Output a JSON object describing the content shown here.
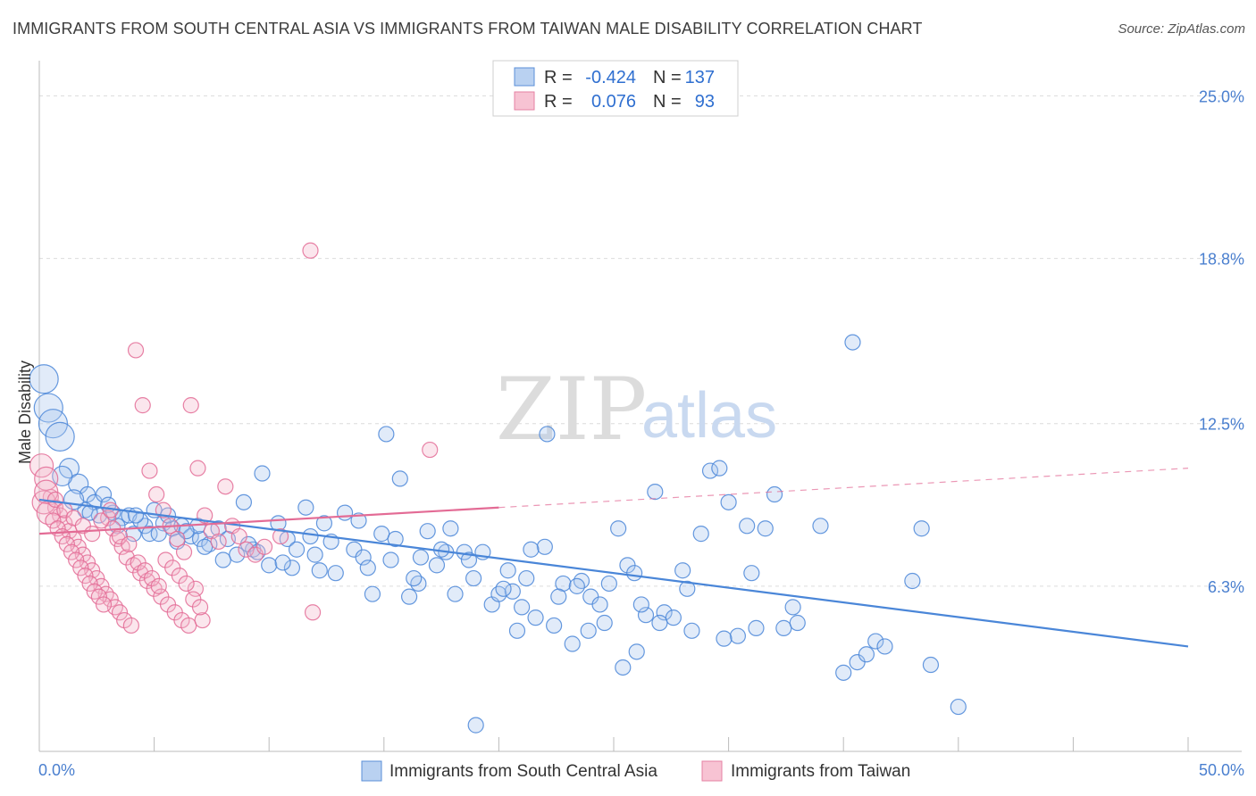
{
  "chart_data": {
    "type": "scatter",
    "title": "IMMIGRANTS FROM SOUTH CENTRAL ASIA VS IMMIGRANTS FROM TAIWAN MALE DISABILITY CORRELATION CHART",
    "source": "Source: ZipAtlas.com",
    "xlabel": "",
    "ylabel": "Male Disability",
    "xlim": [
      0,
      50
    ],
    "ylim": [
      0,
      26
    ],
    "x_tick_labels": [
      "0.0%",
      "50.0%"
    ],
    "y_ticks": [
      6.3,
      12.5,
      18.8,
      25.0
    ],
    "y_tick_labels": [
      "6.3%",
      "12.5%",
      "18.8%",
      "25.0%"
    ],
    "watermark": {
      "zip": "ZIP",
      "atlas": "atlas"
    },
    "legend": {
      "r_label": "R =",
      "n_label": "N =",
      "rows": [
        {
          "r": "-0.424",
          "n": "137"
        },
        {
          "r": "0.076",
          "n": "93"
        }
      ]
    },
    "series": [
      {
        "name": "Immigrants from South Central Asia",
        "color": "#4a86d8",
        "fill": "#a9c6ee",
        "trend": {
          "x0": 0,
          "y0": 9.6,
          "x1": 50,
          "y1": 4.0,
          "style": "solid"
        },
        "points": [
          [
            0.2,
            14.2
          ],
          [
            0.4,
            13.1
          ],
          [
            0.6,
            12.5
          ],
          [
            0.9,
            12.0
          ],
          [
            1.3,
            10.8
          ],
          [
            1.7,
            10.2
          ],
          [
            2.1,
            9.8
          ],
          [
            2.4,
            9.5
          ],
          [
            2.8,
            9.8
          ],
          [
            3.2,
            9.1
          ],
          [
            3.6,
            8.9
          ],
          [
            4.1,
            8.3
          ],
          [
            4.6,
            8.6
          ],
          [
            5.0,
            9.2
          ],
          [
            5.4,
            8.7
          ],
          [
            5.8,
            8.5
          ],
          [
            6.2,
            8.6
          ],
          [
            6.6,
            8.2
          ],
          [
            7.0,
            8.1
          ],
          [
            7.4,
            7.9
          ],
          [
            7.8,
            8.5
          ],
          [
            8.2,
            8.1
          ],
          [
            8.6,
            7.5
          ],
          [
            8.9,
            9.5
          ],
          [
            9.3,
            7.7
          ],
          [
            9.7,
            10.6
          ],
          [
            10.0,
            7.1
          ],
          [
            10.4,
            8.7
          ],
          [
            10.8,
            8.1
          ],
          [
            11.2,
            7.7
          ],
          [
            11.6,
            9.3
          ],
          [
            12.0,
            7.5
          ],
          [
            12.4,
            8.7
          ],
          [
            12.9,
            6.8
          ],
          [
            13.3,
            9.1
          ],
          [
            13.7,
            7.7
          ],
          [
            14.1,
            7.4
          ],
          [
            14.5,
            6.0
          ],
          [
            14.9,
            8.3
          ],
          [
            15.3,
            7.3
          ],
          [
            15.7,
            10.4
          ],
          [
            16.1,
            5.9
          ],
          [
            16.5,
            6.4
          ],
          [
            16.9,
            8.4
          ],
          [
            17.3,
            7.1
          ],
          [
            17.7,
            7.6
          ],
          [
            18.1,
            6.0
          ],
          [
            18.5,
            7.6
          ],
          [
            18.9,
            6.6
          ],
          [
            19.3,
            7.6
          ],
          [
            19.7,
            5.6
          ],
          [
            20.0,
            6.0
          ],
          [
            20.4,
            6.9
          ],
          [
            20.8,
            4.6
          ],
          [
            21.2,
            6.6
          ],
          [
            21.6,
            5.1
          ],
          [
            22.0,
            7.8
          ],
          [
            22.4,
            4.8
          ],
          [
            22.8,
            6.4
          ],
          [
            23.2,
            4.1
          ],
          [
            23.6,
            6.5
          ],
          [
            24.0,
            5.9
          ],
          [
            24.4,
            5.6
          ],
          [
            24.8,
            6.4
          ],
          [
            25.2,
            8.5
          ],
          [
            25.6,
            7.1
          ],
          [
            26.0,
            3.8
          ],
          [
            26.4,
            5.2
          ],
          [
            26.8,
            9.9
          ],
          [
            27.2,
            5.3
          ],
          [
            27.6,
            5.1
          ],
          [
            28.0,
            6.9
          ],
          [
            28.4,
            4.6
          ],
          [
            28.8,
            8.3
          ],
          [
            29.2,
            10.7
          ],
          [
            29.6,
            10.8
          ],
          [
            30.0,
            9.5
          ],
          [
            30.4,
            4.4
          ],
          [
            30.8,
            8.6
          ],
          [
            31.2,
            4.7
          ],
          [
            31.6,
            8.5
          ],
          [
            32.0,
            9.8
          ],
          [
            32.4,
            4.7
          ],
          [
            32.8,
            5.5
          ],
          [
            35.4,
            15.6
          ],
          [
            35.0,
            3.0
          ],
          [
            35.6,
            3.4
          ],
          [
            36.0,
            3.7
          ],
          [
            36.4,
            4.2
          ],
          [
            36.8,
            4.0
          ],
          [
            38.0,
            6.5
          ],
          [
            38.4,
            8.5
          ],
          [
            38.8,
            3.3
          ],
          [
            40.0,
            1.7
          ],
          [
            19.0,
            1.0
          ],
          [
            22.1,
            12.1
          ],
          [
            15.1,
            12.1
          ],
          [
            3.9,
            9.0
          ],
          [
            4.8,
            8.3
          ],
          [
            6.9,
            8.6
          ],
          [
            9.1,
            7.9
          ],
          [
            11.0,
            7.0
          ],
          [
            12.7,
            8.0
          ],
          [
            13.9,
            8.8
          ],
          [
            16.6,
            7.4
          ],
          [
            17.9,
            8.5
          ],
          [
            20.6,
            6.1
          ],
          [
            21.4,
            7.7
          ],
          [
            23.9,
            4.6
          ],
          [
            25.9,
            6.8
          ],
          [
            2.0,
            9.2
          ],
          [
            2.6,
            9.0
          ],
          [
            3.0,
            9.4
          ],
          [
            4.4,
            8.8
          ],
          [
            5.2,
            8.3
          ],
          [
            6.0,
            8.0
          ],
          [
            7.2,
            7.8
          ],
          [
            8.0,
            7.3
          ],
          [
            9.5,
            7.6
          ],
          [
            10.6,
            7.2
          ],
          [
            11.8,
            8.2
          ],
          [
            12.2,
            6.9
          ],
          [
            14.3,
            7.0
          ],
          [
            15.5,
            8.1
          ],
          [
            16.3,
            6.6
          ],
          [
            17.5,
            7.7
          ],
          [
            18.7,
            7.3
          ],
          [
            20.2,
            6.2
          ],
          [
            21.0,
            5.5
          ],
          [
            22.6,
            5.9
          ],
          [
            23.4,
            6.3
          ],
          [
            24.6,
            4.9
          ],
          [
            25.4,
            3.2
          ],
          [
            26.2,
            5.6
          ],
          [
            27.0,
            4.9
          ],
          [
            28.2,
            6.2
          ],
          [
            29.8,
            4.3
          ],
          [
            31.0,
            6.8
          ],
          [
            33.0,
            4.9
          ],
          [
            34.0,
            8.6
          ],
          [
            1.0,
            10.5
          ],
          [
            1.5,
            9.6
          ],
          [
            2.2,
            9.1
          ],
          [
            3.4,
            8.6
          ],
          [
            4.2,
            9.0
          ],
          [
            5.6,
            9.0
          ],
          [
            6.4,
            8.4
          ]
        ]
      },
      {
        "name": "Immigrants from Taiwan",
        "color": "#e36b95",
        "fill": "#f4b8cc",
        "trend": {
          "x0": 0,
          "y0": 8.3,
          "x1": 20,
          "y1": 9.3,
          "style": "solid",
          "ext_x1": 50,
          "ext_y1": 10.8
        },
        "points": [
          [
            0.1,
            10.9
          ],
          [
            0.3,
            10.4
          ],
          [
            0.5,
            9.7
          ],
          [
            0.7,
            9.3
          ],
          [
            0.9,
            9.0
          ],
          [
            1.1,
            8.7
          ],
          [
            1.3,
            8.4
          ],
          [
            1.5,
            8.1
          ],
          [
            1.7,
            7.8
          ],
          [
            1.9,
            7.5
          ],
          [
            2.1,
            7.2
          ],
          [
            2.3,
            6.9
          ],
          [
            2.5,
            6.6
          ],
          [
            2.7,
            6.3
          ],
          [
            2.9,
            6.0
          ],
          [
            3.1,
            5.8
          ],
          [
            3.3,
            5.5
          ],
          [
            3.5,
            5.3
          ],
          [
            3.7,
            5.0
          ],
          [
            4.0,
            4.8
          ],
          [
            4.2,
            15.3
          ],
          [
            4.5,
            13.2
          ],
          [
            4.8,
            10.7
          ],
          [
            5.1,
            9.8
          ],
          [
            5.4,
            9.2
          ],
          [
            5.7,
            8.6
          ],
          [
            6.0,
            8.1
          ],
          [
            6.3,
            7.6
          ],
          [
            6.6,
            13.2
          ],
          [
            6.9,
            10.8
          ],
          [
            7.2,
            9.0
          ],
          [
            7.5,
            8.4
          ],
          [
            7.8,
            8.0
          ],
          [
            8.1,
            10.1
          ],
          [
            8.4,
            8.6
          ],
          [
            8.7,
            8.2
          ],
          [
            9.0,
            7.7
          ],
          [
            9.4,
            7.5
          ],
          [
            11.8,
            19.1
          ],
          [
            11.9,
            5.3
          ],
          [
            17.0,
            11.5
          ],
          [
            0.2,
            9.5
          ],
          [
            0.4,
            9.1
          ],
          [
            0.6,
            8.8
          ],
          [
            0.8,
            8.5
          ],
          [
            1.0,
            8.2
          ],
          [
            1.2,
            7.9
          ],
          [
            1.4,
            7.6
          ],
          [
            1.6,
            7.3
          ],
          [
            1.8,
            7.0
          ],
          [
            2.0,
            6.7
          ],
          [
            2.2,
            6.4
          ],
          [
            2.4,
            6.1
          ],
          [
            2.6,
            5.9
          ],
          [
            2.8,
            5.6
          ],
          [
            3.0,
            8.9
          ],
          [
            3.2,
            8.5
          ],
          [
            3.4,
            8.1
          ],
          [
            3.6,
            7.8
          ],
          [
            3.8,
            7.4
          ],
          [
            4.1,
            7.1
          ],
          [
            4.4,
            6.8
          ],
          [
            4.7,
            6.5
          ],
          [
            5.0,
            6.2
          ],
          [
            5.3,
            5.9
          ],
          [
            5.6,
            5.6
          ],
          [
            5.9,
            5.3
          ],
          [
            6.2,
            5.0
          ],
          [
            6.5,
            4.8
          ],
          [
            6.8,
            6.2
          ],
          [
            7.1,
            5.0
          ],
          [
            0.3,
            9.9
          ],
          [
            0.7,
            9.6
          ],
          [
            1.1,
            9.2
          ],
          [
            1.5,
            8.9
          ],
          [
            1.9,
            8.6
          ],
          [
            2.3,
            8.3
          ],
          [
            2.7,
            8.8
          ],
          [
            3.1,
            9.2
          ],
          [
            3.5,
            8.2
          ],
          [
            3.9,
            7.9
          ],
          [
            4.3,
            7.2
          ],
          [
            4.6,
            6.9
          ],
          [
            4.9,
            6.6
          ],
          [
            5.2,
            6.3
          ],
          [
            5.5,
            7.3
          ],
          [
            5.8,
            7.0
          ],
          [
            6.1,
            6.7
          ],
          [
            6.4,
            6.4
          ],
          [
            6.7,
            5.8
          ],
          [
            7.0,
            5.5
          ],
          [
            9.8,
            7.8
          ],
          [
            10.5,
            8.2
          ]
        ]
      }
    ]
  }
}
